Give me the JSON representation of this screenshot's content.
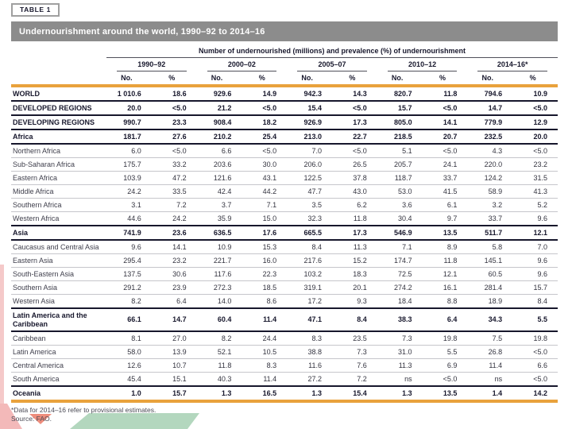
{
  "page": {
    "table_tag": "TABLE 1",
    "title": "Undernourishment around the world, 1990–92 to 2014–16"
  },
  "table": {
    "group_header": "Number of undernourished (millions) and prevalence (%) of undernourishment",
    "periods": [
      "1990–92",
      "2000–02",
      "2005–07",
      "2010–12",
      "2014–16*"
    ],
    "subcolumns": [
      "No.",
      "%"
    ],
    "rows": [
      {
        "label": "WORLD",
        "bold": true,
        "sep": "major",
        "values": [
          "1 010.6",
          "18.6",
          "929.6",
          "14.9",
          "942.3",
          "14.3",
          "820.7",
          "11.8",
          "794.6",
          "10.9"
        ]
      },
      {
        "label": "DEVELOPED REGIONS",
        "bold": true,
        "sep": "major",
        "values": [
          "20.0",
          "<5.0",
          "21.2",
          "<5.0",
          "15.4",
          "<5.0",
          "15.7",
          "<5.0",
          "14.7",
          "<5.0"
        ]
      },
      {
        "label": "DEVELOPING REGIONS",
        "bold": true,
        "sep": "major",
        "values": [
          "990.7",
          "23.3",
          "908.4",
          "18.2",
          "926.9",
          "17.3",
          "805.0",
          "14.1",
          "779.9",
          "12.9"
        ]
      },
      {
        "label": "Africa",
        "bold": true,
        "sep": "major",
        "values": [
          "181.7",
          "27.6",
          "210.2",
          "25.4",
          "213.0",
          "22.7",
          "218.5",
          "20.7",
          "232.5",
          "20.0"
        ]
      },
      {
        "label": "Northern Africa",
        "bold": false,
        "sep": "minor",
        "values": [
          "6.0",
          "<5.0",
          "6.6",
          "<5.0",
          "7.0",
          "<5.0",
          "5.1",
          "<5.0",
          "4.3",
          "<5.0"
        ]
      },
      {
        "label": "Sub-Saharan Africa",
        "bold": false,
        "sep": "minor",
        "values": [
          "175.7",
          "33.2",
          "203.6",
          "30.0",
          "206.0",
          "26.5",
          "205.7",
          "24.1",
          "220.0",
          "23.2"
        ]
      },
      {
        "label": "Eastern Africa",
        "bold": false,
        "sep": "minor",
        "values": [
          "103.9",
          "47.2",
          "121.6",
          "43.1",
          "122.5",
          "37.8",
          "118.7",
          "33.7",
          "124.2",
          "31.5"
        ]
      },
      {
        "label": "Middle Africa",
        "bold": false,
        "sep": "minor",
        "values": [
          "24.2",
          "33.5",
          "42.4",
          "44.2",
          "47.7",
          "43.0",
          "53.0",
          "41.5",
          "58.9",
          "41.3"
        ]
      },
      {
        "label": "Southern Africa",
        "bold": false,
        "sep": "minor",
        "values": [
          "3.1",
          "7.2",
          "3.7",
          "7.1",
          "3.5",
          "6.2",
          "3.6",
          "6.1",
          "3.2",
          "5.2"
        ]
      },
      {
        "label": "Western Africa",
        "bold": false,
        "sep": "major",
        "values": [
          "44.6",
          "24.2",
          "35.9",
          "15.0",
          "32.3",
          "11.8",
          "30.4",
          "9.7",
          "33.7",
          "9.6"
        ]
      },
      {
        "label": "Asia",
        "bold": true,
        "sep": "major",
        "values": [
          "741.9",
          "23.6",
          "636.5",
          "17.6",
          "665.5",
          "17.3",
          "546.9",
          "13.5",
          "511.7",
          "12.1"
        ]
      },
      {
        "label": "Caucasus and Central Asia",
        "bold": false,
        "sep": "minor",
        "values": [
          "9.6",
          "14.1",
          "10.9",
          "15.3",
          "8.4",
          "11.3",
          "7.1",
          "8.9",
          "5.8",
          "7.0"
        ]
      },
      {
        "label": "Eastern Asia",
        "bold": false,
        "sep": "minor",
        "values": [
          "295.4",
          "23.2",
          "221.7",
          "16.0",
          "217.6",
          "15.2",
          "174.7",
          "11.8",
          "145.1",
          "9.6"
        ]
      },
      {
        "label": "South-Eastern Asia",
        "bold": false,
        "sep": "minor",
        "values": [
          "137.5",
          "30.6",
          "117.6",
          "22.3",
          "103.2",
          "18.3",
          "72.5",
          "12.1",
          "60.5",
          "9.6"
        ]
      },
      {
        "label": "Southern Asia",
        "bold": false,
        "sep": "minor",
        "values": [
          "291.2",
          "23.9",
          "272.3",
          "18.5",
          "319.1",
          "20.1",
          "274.2",
          "16.1",
          "281.4",
          "15.7"
        ]
      },
      {
        "label": "Western Asia",
        "bold": false,
        "sep": "major",
        "values": [
          "8.2",
          "6.4",
          "14.0",
          "8.6",
          "17.2",
          "9.3",
          "18.4",
          "8.8",
          "18.9",
          "8.4"
        ]
      },
      {
        "label": "Latin America and the Caribbean",
        "bold": true,
        "sep": "major",
        "values": [
          "66.1",
          "14.7",
          "60.4",
          "11.4",
          "47.1",
          "8.4",
          "38.3",
          "6.4",
          "34.3",
          "5.5"
        ]
      },
      {
        "label": "Caribbean",
        "bold": false,
        "sep": "minor",
        "values": [
          "8.1",
          "27.0",
          "8.2",
          "24.4",
          "8.3",
          "23.5",
          "7.3",
          "19.8",
          "7.5",
          "19.8"
        ]
      },
      {
        "label": "Latin America",
        "bold": false,
        "sep": "minor",
        "values": [
          "58.0",
          "13.9",
          "52.1",
          "10.5",
          "38.8",
          "7.3",
          "31.0",
          "5.5",
          "26.8",
          "<5.0"
        ]
      },
      {
        "label": "Central America",
        "bold": false,
        "sep": "minor",
        "values": [
          "12.6",
          "10.7",
          "11.8",
          "8.3",
          "11.6",
          "7.6",
          "11.3",
          "6.9",
          "11.4",
          "6.6"
        ]
      },
      {
        "label": "South America",
        "bold": false,
        "sep": "major",
        "values": [
          "45.4",
          "15.1",
          "40.3",
          "11.4",
          "27.2",
          "7.2",
          "ns",
          "<5.0",
          "ns",
          "<5.0"
        ]
      },
      {
        "label": "Oceania",
        "bold": true,
        "sep": "amber",
        "values": [
          "1.0",
          "15.7",
          "1.3",
          "16.5",
          "1.3",
          "15.4",
          "1.3",
          "13.5",
          "1.4",
          "14.2"
        ]
      }
    ]
  },
  "footnotes": {
    "note": "*Data for 2014–16 refer to provisional estimates.",
    "source": "Source: FAO."
  },
  "colors": {
    "accent_amber": "#E9A23C",
    "title_bar_gray": "#8C8C8C",
    "deco_pink": "#F5C9C9",
    "deco_red": "#EE8D7C",
    "deco_green": "#B3D7BE"
  }
}
